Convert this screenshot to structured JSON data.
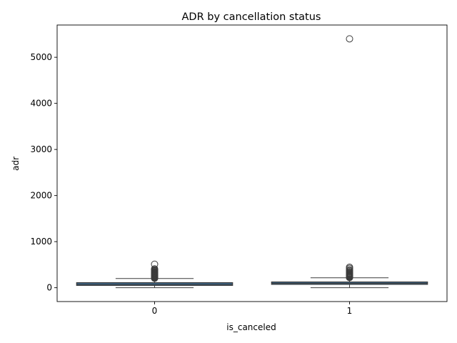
{
  "chart_data": {
    "type": "box",
    "title": "ADR by cancellation status",
    "xlabel": "is_canceled",
    "ylabel": "adr",
    "categories": [
      "0",
      "1"
    ],
    "ylim": [
      -300,
      5700
    ],
    "yticks": [
      0,
      1000,
      2000,
      3000,
      4000,
      5000
    ],
    "grid": false,
    "colors": {
      "box_fill": "#3a6e99",
      "box_edge": "#3b3b3b",
      "outlier_edge": "#3b3b3b"
    },
    "boxes": [
      {
        "category": "0",
        "whisker_low": 0,
        "q1": 50,
        "median": 75,
        "q3": 110,
        "whisker_high": 200,
        "outliers": [
          205,
          215,
          225,
          235,
          245,
          255,
          265,
          275,
          285,
          295,
          305,
          315,
          325,
          335,
          345,
          360,
          375,
          390,
          410,
          510
        ]
      },
      {
        "category": "1",
        "whisker_low": 0,
        "q1": 73,
        "median": 96,
        "q3": 125,
        "whisker_high": 215,
        "outliers": [
          220,
          230,
          240,
          250,
          260,
          270,
          280,
          290,
          300,
          310,
          320,
          335,
          350,
          370,
          390,
          420,
          445,
          5400
        ]
      }
    ]
  }
}
